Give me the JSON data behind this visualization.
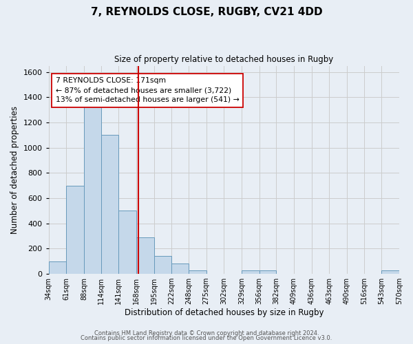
{
  "title": "7, REYNOLDS CLOSE, RUGBY, CV21 4DD",
  "subtitle": "Size of property relative to detached houses in Rugby",
  "xlabel": "Distribution of detached houses by size in Rugby",
  "ylabel": "Number of detached properties",
  "bin_edges": [
    34,
    61,
    88,
    114,
    141,
    168,
    195,
    222,
    248,
    275,
    302,
    329,
    356,
    382,
    409,
    436,
    463,
    490,
    516,
    543,
    570
  ],
  "bar_heights": [
    100,
    700,
    1330,
    1100,
    500,
    290,
    140,
    80,
    30,
    0,
    0,
    30,
    30,
    0,
    0,
    0,
    0,
    0,
    0,
    30
  ],
  "bar_color": "#c5d8ea",
  "bar_edge_color": "#6699bb",
  "tick_labels": [
    "34sqm",
    "61sqm",
    "88sqm",
    "114sqm",
    "141sqm",
    "168sqm",
    "195sqm",
    "222sqm",
    "248sqm",
    "275sqm",
    "302sqm",
    "329sqm",
    "356sqm",
    "382sqm",
    "409sqm",
    "436sqm",
    "463sqm",
    "490sqm",
    "516sqm",
    "543sqm",
    "570sqm"
  ],
  "vline_x": 171,
  "vline_color": "#cc0000",
  "annotation_line1": "7 REYNOLDS CLOSE: 171sqm",
  "annotation_line2": "← 87% of detached houses are smaller (3,722)",
  "annotation_line3": "13% of semi-detached houses are larger (541) →",
  "annotation_box_color": "#ffffff",
  "annotation_box_edge": "#cc0000",
  "ylim": [
    0,
    1650
  ],
  "yticks": [
    0,
    200,
    400,
    600,
    800,
    1000,
    1200,
    1400,
    1600
  ],
  "grid_color": "#cccccc",
  "bg_color": "#e8eef5",
  "footer_line1": "Contains HM Land Registry data © Crown copyright and database right 2024.",
  "footer_line2": "Contains public sector information licensed under the Open Government Licence v3.0."
}
